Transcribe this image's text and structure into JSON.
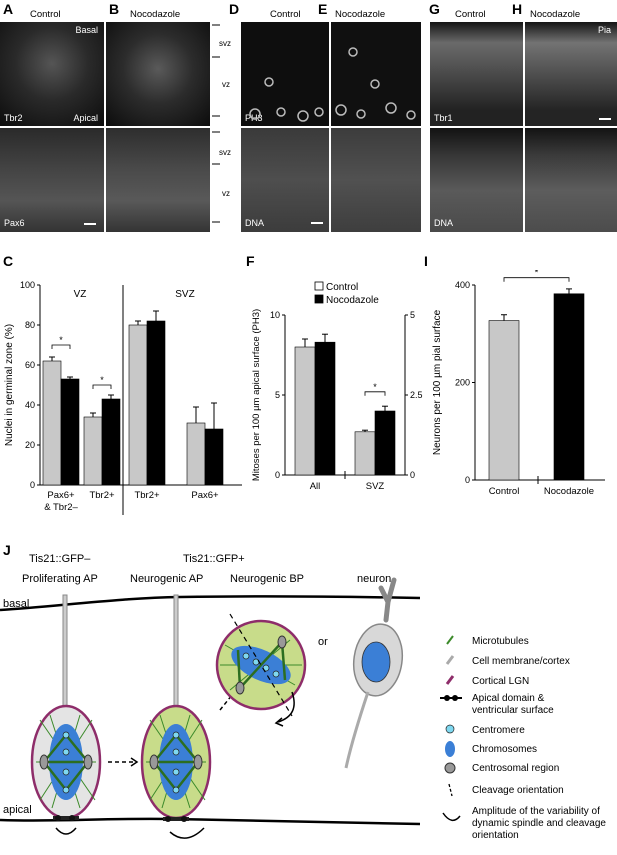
{
  "panel_letters": [
    "A",
    "B",
    "C",
    "D",
    "E",
    "F",
    "G",
    "H",
    "I",
    "J"
  ],
  "micro": {
    "condition_control": "Control",
    "condition_nocodazole": "Nocodazole",
    "label_basal": "Basal",
    "label_apical": "Apical",
    "label_tbr2": "Tbr2",
    "label_pax6": "Pax6",
    "label_ph3": "PH3",
    "label_dna": "DNA",
    "label_tbr1": "Tbr1",
    "label_pia": "Pia",
    "zone_svz": "svz",
    "zone_vz": "vz"
  },
  "chart_data": [
    {
      "panel": "C",
      "type": "bar",
      "ylabel": "Nuclei in germinal zone (%)",
      "ylim": [
        0,
        100
      ],
      "yticks": [
        0,
        20,
        40,
        60,
        80,
        100
      ],
      "group_headers": [
        "VZ",
        "SVZ"
      ],
      "categories": [
        "Pax6+ & Tbr2–",
        "Tbr2+",
        "Tbr2+",
        "Pax6+"
      ],
      "series": [
        {
          "name": "Control",
          "color": "#c8c8c8",
          "values": [
            62,
            34,
            80,
            31
          ],
          "errors": [
            2,
            2,
            2,
            8
          ]
        },
        {
          "name": "Nocodazole",
          "color": "#000000",
          "values": [
            53,
            43,
            82,
            28
          ],
          "errors": [
            1,
            2,
            5,
            13
          ]
        }
      ],
      "significance": [
        "*",
        "*"
      ]
    },
    {
      "panel": "F",
      "type": "bar",
      "ylabel": "Mitoses per 100 µm apical surface (PH3)",
      "ylim": [
        0,
        10
      ],
      "yticks": [
        0,
        5,
        10
      ],
      "y2ticks": [
        "0",
        "2.5",
        "5"
      ],
      "categories": [
        "All",
        "SVZ"
      ],
      "legend": [
        "Control",
        "Nocodazole"
      ],
      "legend_placement": "top-right",
      "series": [
        {
          "name": "Control",
          "color": "#c8c8c8",
          "values": [
            8.0,
            2.7
          ],
          "errors": [
            0.5,
            0.1
          ]
        },
        {
          "name": "Nocodazole",
          "color": "#000000",
          "values": [
            8.3,
            4.0
          ],
          "errors": [
            0.5,
            0.3
          ]
        }
      ],
      "significance": [
        "*"
      ]
    },
    {
      "panel": "I",
      "type": "bar",
      "ylabel": "Neurons per 100  µm pial surface",
      "ylim": [
        0,
        400
      ],
      "yticks": [
        0,
        200,
        400
      ],
      "categories": [
        "Control",
        "Nocodazole"
      ],
      "values": [
        327,
        382
      ],
      "errors": [
        12,
        10
      ],
      "colors": [
        "#c8c8c8",
        "#000000"
      ],
      "significance": [
        "*"
      ]
    }
  ],
  "schematic": {
    "header_gfn": "Tis21::GFP–",
    "header_gfp": "Tis21::GFP+",
    "cell_proliferating": "Proliferating AP",
    "cell_neurogenic_ap": "Neurogenic AP",
    "cell_neurogenic_bp": "Neurogenic BP",
    "cell_neuron": "neuron",
    "label_basal": "basal",
    "label_apical": "apical",
    "label_or": "or",
    "legend": [
      "Microtubules",
      "Cell membrane/cortex",
      "Cortical LGN",
      "Apical domain &",
      "ventricular surface",
      "Centromere",
      "Chromosomes",
      "Centrosomal region",
      "Cleavage orientation",
      "Amplitude of the variability of",
      "dynamic spindle and cleavage",
      "orientation"
    ],
    "colors": {
      "gfp_green": "#c8dc8a",
      "chromosome_blue": "#3b7fd6",
      "centromere_cyan": "#7fd8f0",
      "membrane_purple": "#8e2d6a",
      "spindle_green": "#3c8a2a"
    }
  }
}
